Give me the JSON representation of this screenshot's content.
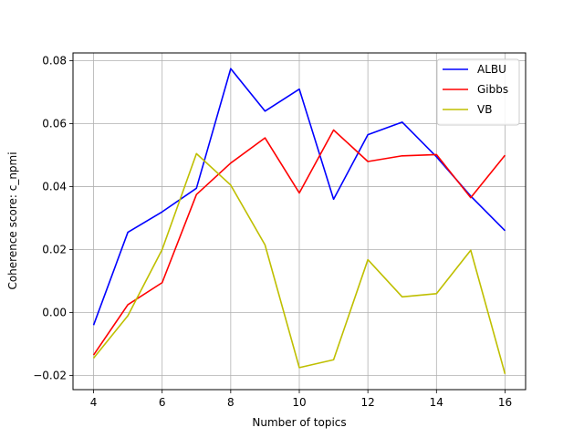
{
  "chart_data": {
    "type": "line",
    "title": "",
    "xlabel": "Number of topics",
    "ylabel": "Coherence score: c_npmi",
    "x": [
      4,
      5,
      6,
      7,
      8,
      9,
      10,
      11,
      12,
      13,
      14,
      15,
      16
    ],
    "xlim": [
      3.4,
      16.6
    ],
    "ylim": [
      -0.0245,
      0.0825
    ],
    "xticks": [
      4,
      6,
      8,
      10,
      12,
      14,
      16
    ],
    "yticks": [
      -0.02,
      0.0,
      0.02,
      0.04,
      0.06,
      0.08
    ],
    "ytick_labels": [
      "−0.02",
      "0.00",
      "0.02",
      "0.04",
      "0.06",
      "0.08"
    ],
    "grid": true,
    "legend_position": "top-right",
    "series": [
      {
        "name": "ALBU",
        "color": "#0000ff",
        "values": [
          -0.004,
          0.0255,
          0.032,
          0.0395,
          0.0775,
          0.064,
          0.071,
          0.036,
          0.0565,
          0.0605,
          0.0495,
          0.037,
          0.026
        ]
      },
      {
        "name": "Gibbs",
        "color": "#ff0000",
        "values": [
          -0.0135,
          0.0025,
          0.0095,
          0.0375,
          0.0475,
          0.0555,
          0.038,
          0.058,
          0.048,
          0.0498,
          0.0502,
          0.0365,
          0.05
        ]
      },
      {
        "name": "VB",
        "color": "#bfbf00",
        "values": [
          -0.0145,
          -0.001,
          0.02,
          0.0505,
          0.0405,
          0.0215,
          -0.0175,
          -0.015,
          0.0168,
          0.005,
          0.006,
          0.0198,
          -0.0195
        ]
      }
    ]
  }
}
